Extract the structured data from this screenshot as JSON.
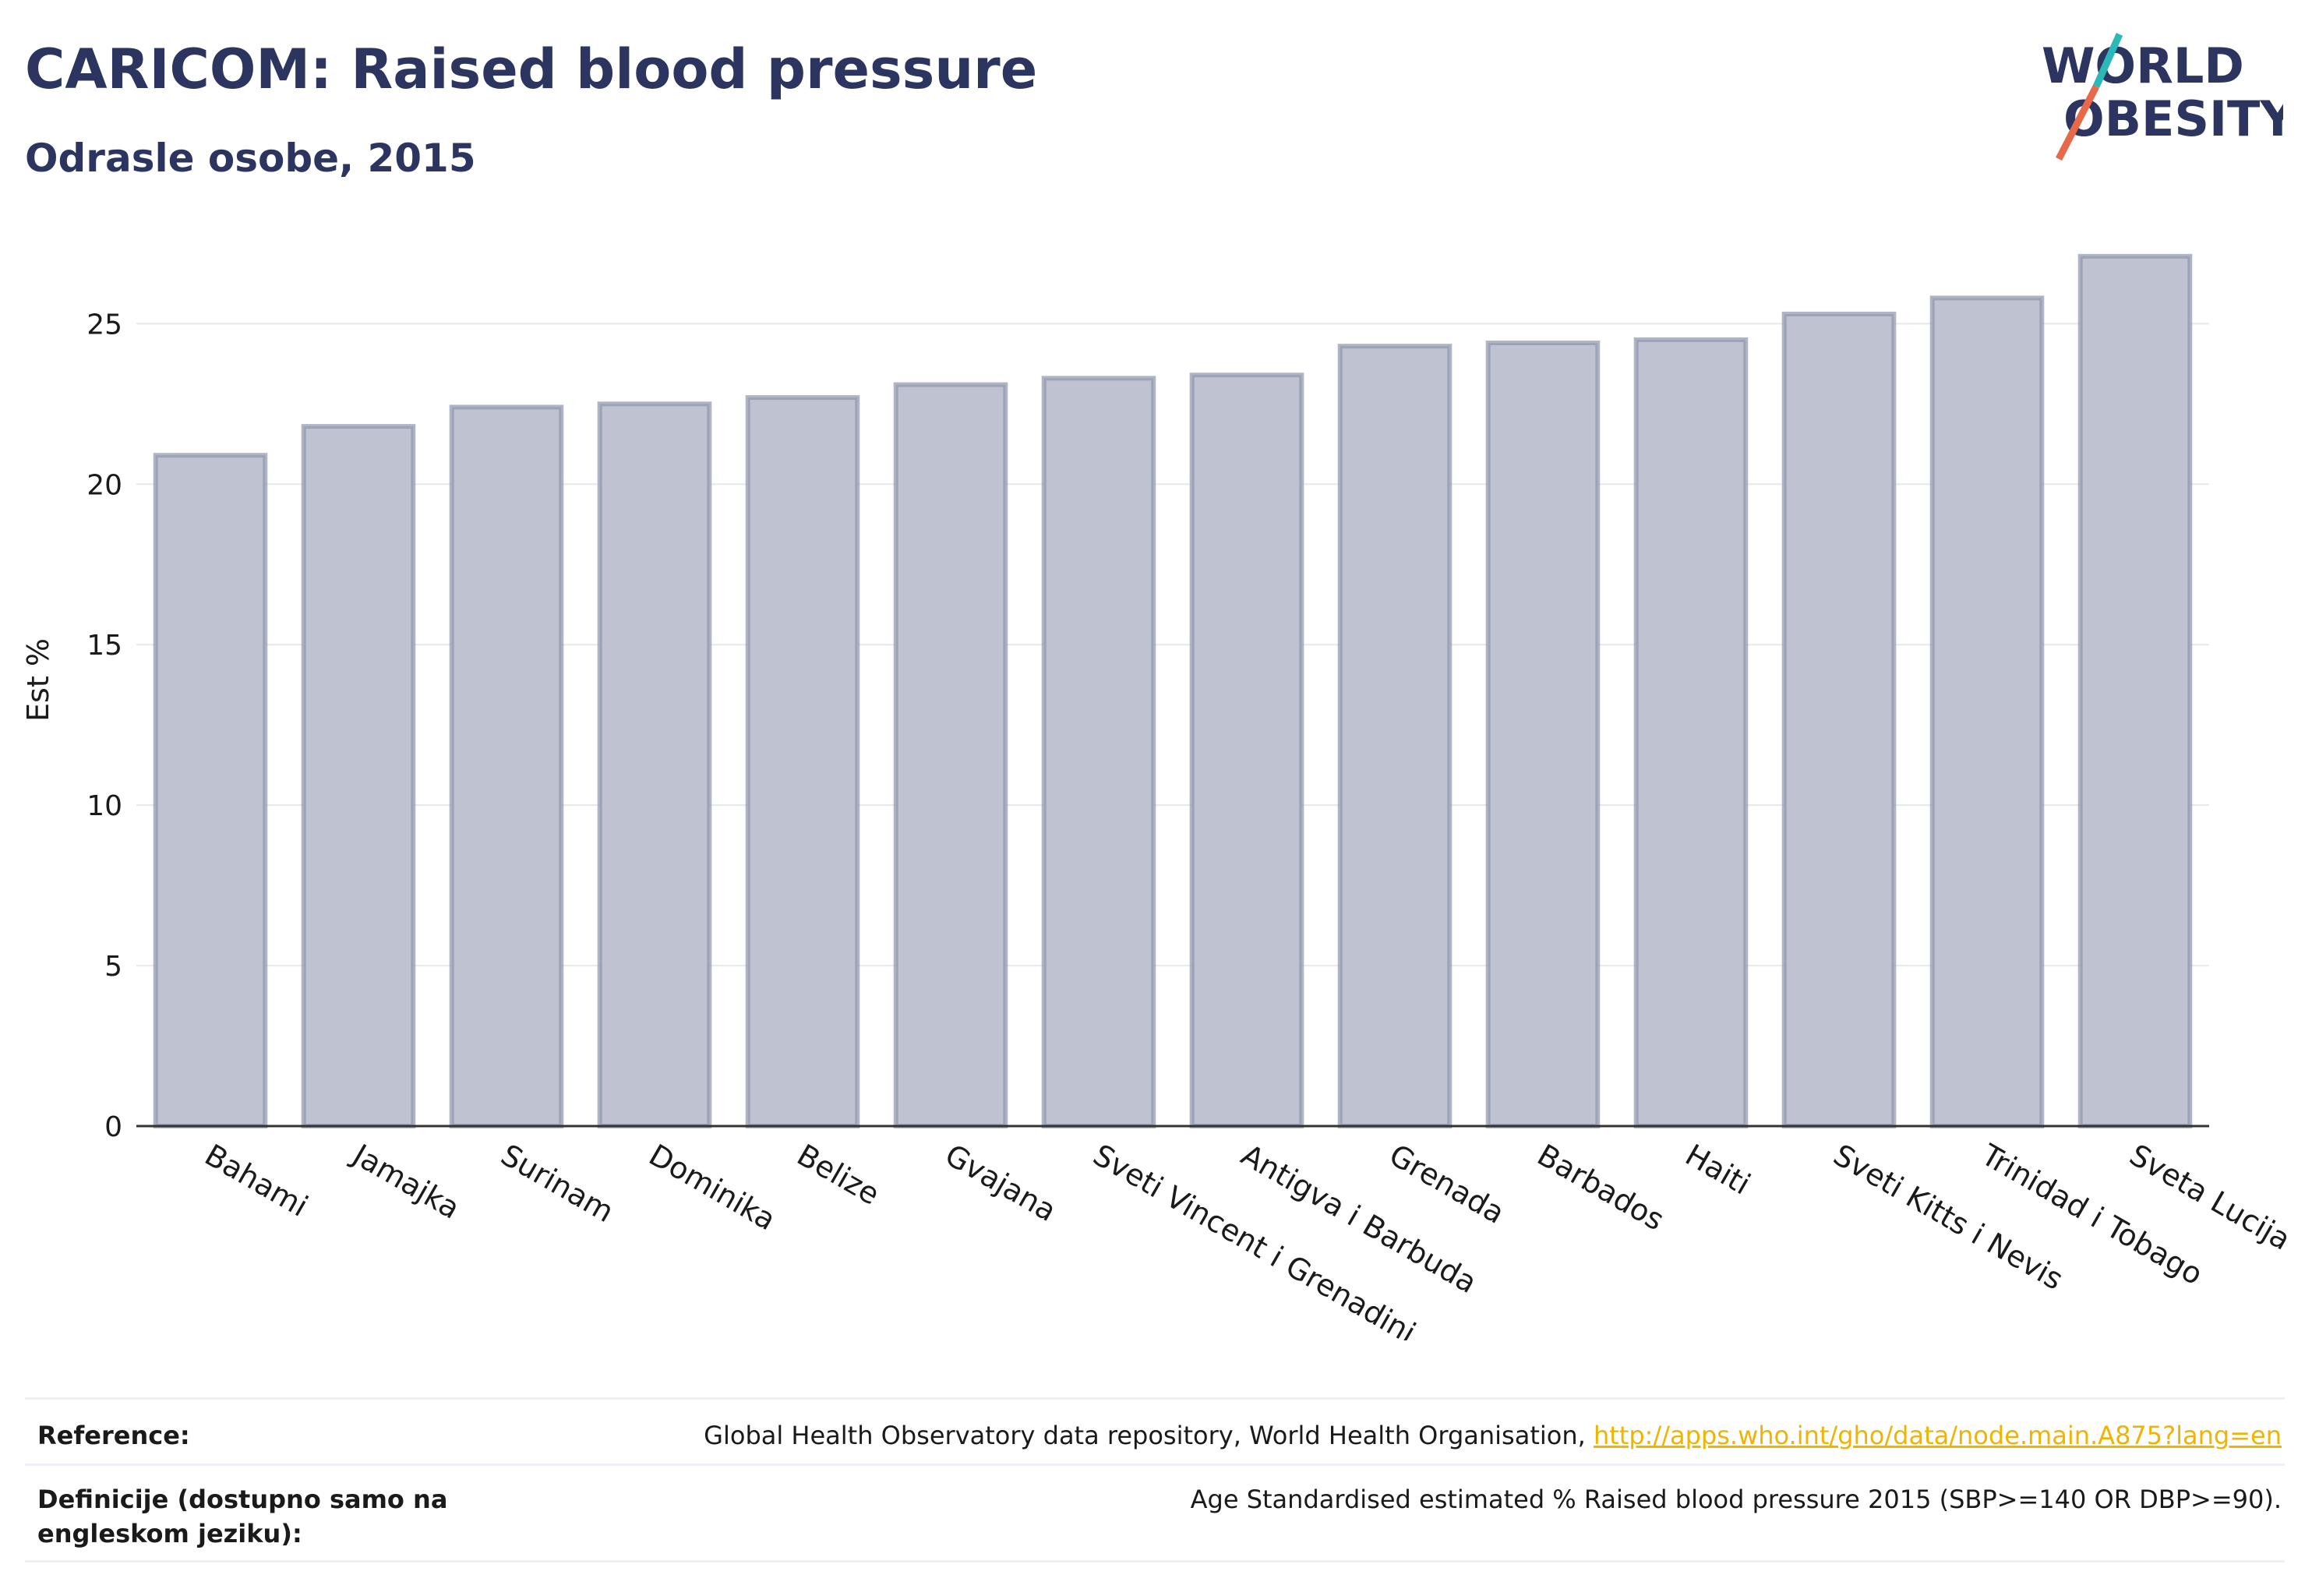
{
  "header": {
    "title": "CARICOM: Raised blood pressure",
    "subtitle": "Odrasle osobe, 2015"
  },
  "logo": {
    "line1": "WORLD",
    "line2": "OBESITY",
    "accent_colors": [
      "#2bb8b8",
      "#e8684a"
    ]
  },
  "colors": {
    "bar_fill": "#bfc3d1",
    "bar_stroke": "#8e95ad",
    "text": "#2b3560",
    "grid": "#e6e8ee"
  },
  "chart_data": {
    "type": "bar",
    "ylabel": "Est %",
    "ylim": [
      0,
      27.8
    ],
    "yticks": [
      0,
      5,
      10,
      15,
      20,
      25
    ],
    "grid": true,
    "categories": [
      "Bahami",
      "Jamajka",
      "Surinam",
      "Dominika",
      "Belize",
      "Gvajana",
      "Sveti Vincent i Grenadini",
      "Antigva i Barbuda",
      "Grenada",
      "Barbados",
      "Haiti",
      "Sveti Kitts i Nevis",
      "Trinidad i Tobago",
      "Sveta Lucija"
    ],
    "values": [
      20.9,
      21.8,
      22.4,
      22.5,
      22.7,
      23.1,
      23.3,
      23.4,
      24.3,
      24.4,
      24.5,
      25.3,
      25.8,
      27.1
    ]
  },
  "footer": {
    "reference_label": "Reference:",
    "reference_text": "Global Health Observatory data repository, World Health Organisation, ",
    "reference_link": "http://apps.who.int/gho/data/node.main.A875?lang=en",
    "definition_label": "Definicije (dostupno samo na engleskom jeziku):",
    "definition_text": "Age Standardised estimated % Raised blood pressure 2015 (SBP>=140 OR DBP>=90)."
  }
}
